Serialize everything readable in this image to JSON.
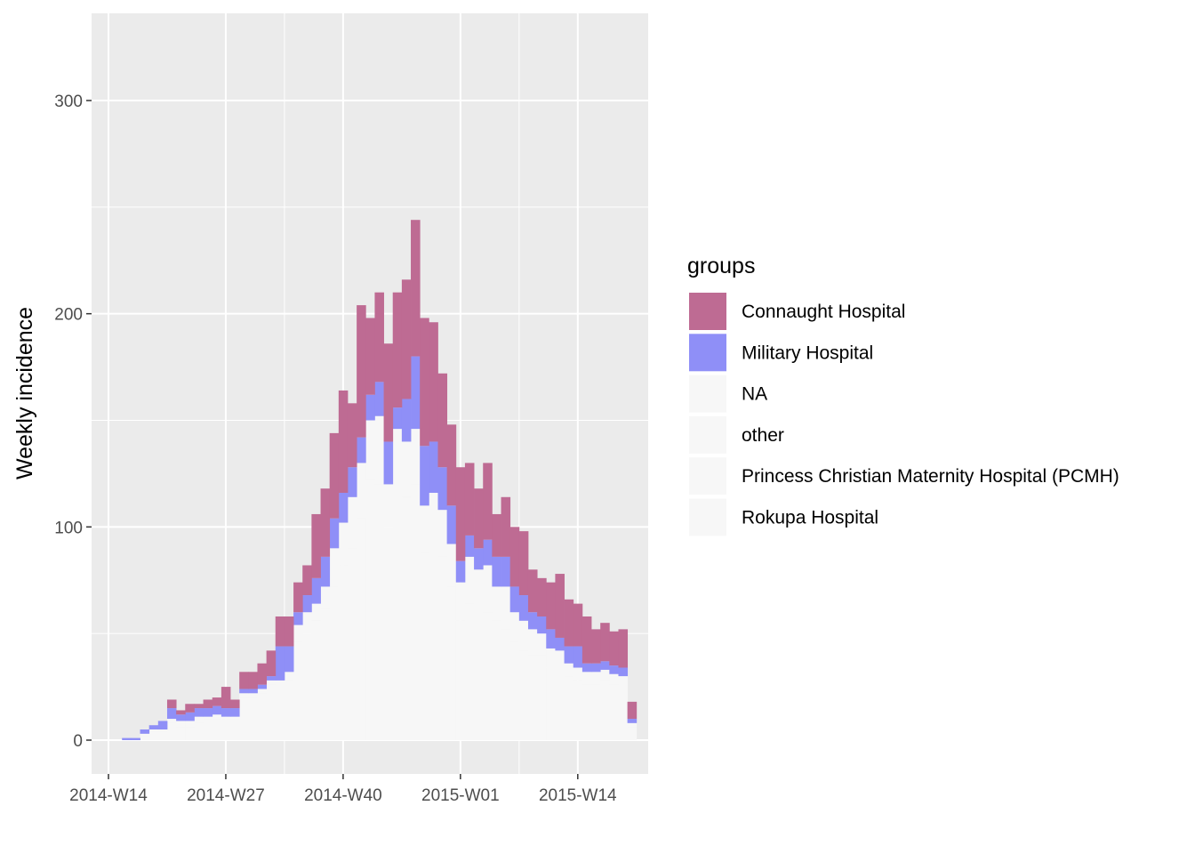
{
  "chart_data": {
    "type": "bar",
    "stacked": true,
    "title": "",
    "xlabel": "",
    "ylabel": "Weekly incidence",
    "ylim": [
      -16,
      340
    ],
    "grid": true,
    "legend_position": "right",
    "legend_title": "groups",
    "x_ticks": [
      "2014-W14",
      "2014-W27",
      "2014-W40",
      "2015-W01",
      "2015-W14"
    ],
    "y_ticks": [
      "0",
      "100",
      "200",
      "300"
    ],
    "y_tick_values": [
      0,
      100,
      200,
      300
    ],
    "x_start": "2014-W14",
    "categories": [
      "2014-W14",
      "2014-W15",
      "2014-W16",
      "2014-W17",
      "2014-W18",
      "2014-W19",
      "2014-W20",
      "2014-W21",
      "2014-W22",
      "2014-W23",
      "2014-W24",
      "2014-W25",
      "2014-W26",
      "2014-W27",
      "2014-W28",
      "2014-W29",
      "2014-W30",
      "2014-W31",
      "2014-W32",
      "2014-W33",
      "2014-W34",
      "2014-W35",
      "2014-W36",
      "2014-W37",
      "2014-W38",
      "2014-W39",
      "2014-W40",
      "2014-W41",
      "2014-W42",
      "2014-W43",
      "2014-W44",
      "2014-W45",
      "2014-W46",
      "2014-W47",
      "2014-W48",
      "2014-W49",
      "2014-W50",
      "2014-W51",
      "2014-W52",
      "2015-W01",
      "2015-W02",
      "2015-W03",
      "2015-W04",
      "2015-W05",
      "2015-W06",
      "2015-W07",
      "2015-W08",
      "2015-W09",
      "2015-W10",
      "2015-W11",
      "2015-W12",
      "2015-W13",
      "2015-W14",
      "2015-W15",
      "2015-W16",
      "2015-W17",
      "2015-W18",
      "2015-W19"
    ],
    "series": [
      {
        "name": "Rokupa Hospital",
        "color": "#f7f7f7",
        "values": [
          0,
          0,
          0,
          2,
          4,
          4,
          8,
          6,
          6,
          8,
          10,
          10,
          10,
          10,
          20,
          20,
          22,
          26,
          24,
          28,
          46,
          50,
          56,
          62,
          72,
          82,
          90,
          104,
          122,
          120,
          100,
          116,
          114,
          120,
          88,
          92,
          86,
          72,
          56,
          64,
          58,
          60,
          56,
          52,
          46,
          42,
          40,
          40,
          34,
          34,
          30,
          28,
          26,
          26,
          28,
          26,
          24,
          6
        ]
      },
      {
        "name": "Princess Christian Maternity Hospital (PCMH)",
        "color": "#f7f7f7",
        "values": [
          0,
          0,
          0,
          0,
          0,
          0,
          0,
          0,
          0,
          0,
          0,
          0,
          0,
          0,
          0,
          0,
          0,
          0,
          0,
          0,
          0,
          0,
          0,
          0,
          0,
          0,
          0,
          0,
          0,
          0,
          0,
          0,
          0,
          0,
          0,
          0,
          0,
          0,
          0,
          0,
          0,
          0,
          0,
          0,
          0,
          0,
          0,
          0,
          0,
          0,
          0,
          0,
          0,
          0,
          0,
          0,
          0,
          0
        ]
      },
      {
        "name": "other",
        "color": "#f7f7f7",
        "values": [
          0,
          0,
          0,
          1,
          1,
          1,
          2,
          3,
          3,
          3,
          1,
          2,
          1,
          1,
          2,
          2,
          2,
          2,
          4,
          4,
          8,
          10,
          8,
          10,
          18,
          20,
          24,
          26,
          28,
          32,
          20,
          30,
          26,
          26,
          22,
          24,
          22,
          20,
          18,
          22,
          22,
          22,
          16,
          20,
          14,
          14,
          12,
          10,
          9,
          8,
          6,
          6,
          6,
          6,
          5,
          5,
          6,
          2
        ]
      },
      {
        "name": "Military Hospital",
        "color": "#8f8ff7",
        "values": [
          0,
          1,
          1,
          2,
          2,
          4,
          5,
          3,
          4,
          4,
          4,
          4,
          4,
          4,
          2,
          2,
          2,
          2,
          16,
          12,
          6,
          8,
          12,
          14,
          14,
          14,
          14,
          12,
          12,
          16,
          20,
          10,
          20,
          34,
          28,
          24,
          20,
          18,
          10,
          10,
          10,
          12,
          14,
          14,
          12,
          12,
          8,
          8,
          9,
          6,
          8,
          10,
          4,
          4,
          4,
          4,
          4,
          2
        ]
      },
      {
        "name": "Connaught Hospital",
        "color": "#be6b93",
        "values": [
          0,
          0,
          0,
          0,
          0,
          0,
          4,
          2,
          4,
          2,
          4,
          4,
          10,
          4,
          8,
          8,
          10,
          12,
          14,
          14,
          14,
          14,
          30,
          32,
          40,
          48,
          30,
          62,
          36,
          42,
          46,
          54,
          56,
          64,
          60,
          56,
          44,
          38,
          44,
          34,
          28,
          36,
          20,
          28,
          28,
          30,
          20,
          18,
          22,
          30,
          22,
          20,
          22,
          16,
          18,
          16,
          18,
          8
        ]
      }
    ],
    "legend_order": [
      "Connaught Hospital",
      "Military Hospital",
      "NA",
      "other",
      "Princess Christian Maternity Hospital (PCMH)",
      "Rokupa Hospital"
    ],
    "legend_colors": [
      "#be6b93",
      "#8f8ff7",
      "#f7f7f7",
      "#f7f7f7",
      "#f7f7f7",
      "#f7f7f7"
    ]
  }
}
